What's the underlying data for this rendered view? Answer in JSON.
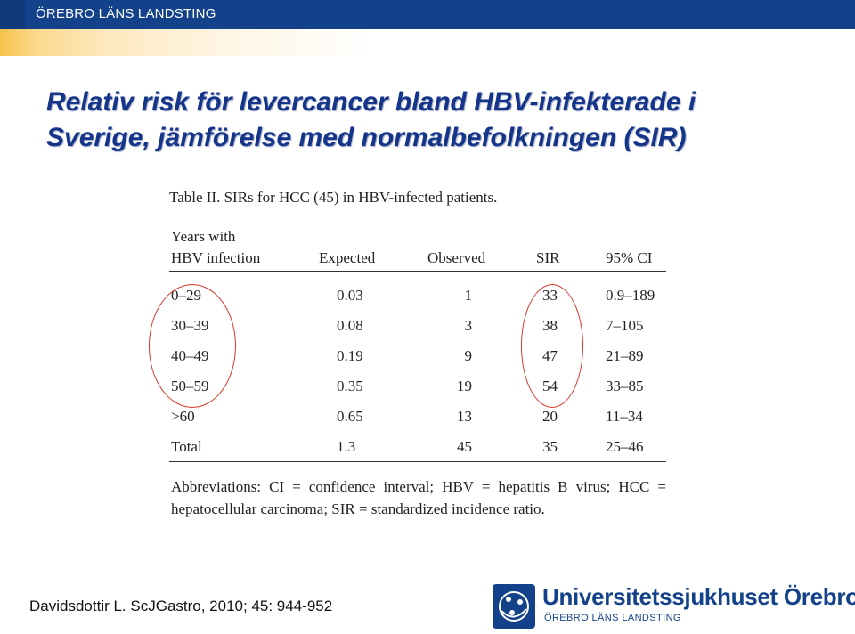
{
  "header": {
    "brand": "ÖREBRO LÄNS LANDSTING"
  },
  "slide": {
    "title_line1": "Relativ risk för levercancer bland HBV-infekterade i",
    "title_line2": "Sverige, jämförelse med normalbefolkningen (SIR)"
  },
  "table": {
    "caption": "Table II. SIRs for HCC (45) in HBV-infected patients.",
    "header_years_line1": "Years with",
    "header_years_line2": "HBV infection",
    "headers": [
      "Expected",
      "Observed",
      "SIR",
      "95% CI"
    ],
    "rows": [
      [
        "0–29",
        "0.03",
        "1",
        "33",
        "0.9–189"
      ],
      [
        "30–39",
        "0.08",
        "3",
        "38",
        "7–105"
      ],
      [
        "40–49",
        "0.19",
        "9",
        "47",
        "21–89"
      ],
      [
        "50–59",
        "0.35",
        "19",
        "54",
        "33–85"
      ],
      [
        ">60",
        "0.65",
        "13",
        "20",
        "11–34"
      ],
      [
        "Total",
        "1.3",
        "45",
        "35",
        "25–46"
      ]
    ],
    "abbreviations": "Abbreviations: CI = confidence interval; HBV = hepatitis B virus; HCC = hepatocellular carcinoma; SIR = standardized incidence ratio."
  },
  "footer": {
    "citation": "Davidsdottir L. ScJGastro, 2010; 45: 944-952",
    "logo_title": "Universitetssjukhuset Örebro",
    "logo_subtitle": "ÖREBRO LÄNS LANDSTING"
  },
  "colors": {
    "brand_blue": "#13428a",
    "title_blue": "#14358a",
    "highlight_red": "#d9362b",
    "gold": "#f6c24a"
  }
}
